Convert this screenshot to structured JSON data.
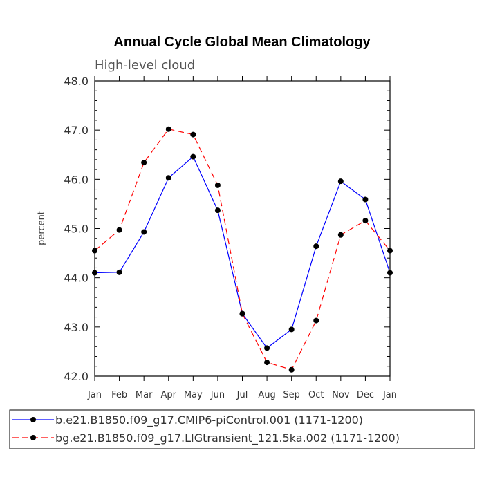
{
  "chart_data": {
    "type": "line",
    "title": "Annual Cycle Global Mean Climatology",
    "subtitle": "High-level cloud",
    "ylabel": "percent",
    "xlabel": "",
    "categories": [
      "Jan",
      "Feb",
      "Mar",
      "Apr",
      "May",
      "Jun",
      "Jul",
      "Aug",
      "Sep",
      "Oct",
      "Nov",
      "Dec",
      "Jan"
    ],
    "ylim": [
      42.0,
      48.0
    ],
    "yticks": [
      "42.0",
      "43.0",
      "44.0",
      "45.0",
      "46.0",
      "47.0",
      "48.0"
    ],
    "grid": false,
    "legend_position": "bottom",
    "series": [
      {
        "name": "b.e21.B1850.f09_g17.CMIP6-piControl.001 (1171-1200)",
        "color": "#0000ff",
        "dash": "solid",
        "values": [
          44.1,
          44.11,
          44.93,
          46.03,
          46.46,
          45.37,
          43.27,
          42.57,
          42.95,
          44.64,
          45.96,
          45.59,
          44.1
        ]
      },
      {
        "name": "bg.e21.B1850.f09_g17.LIGtransient_121.5ka.002 (1171-1200)",
        "color": "#ff0000",
        "dash": "dashed",
        "values": [
          44.55,
          44.97,
          46.34,
          47.02,
          46.91,
          45.88,
          43.27,
          42.28,
          42.13,
          43.13,
          44.87,
          45.16,
          44.55
        ]
      }
    ]
  }
}
